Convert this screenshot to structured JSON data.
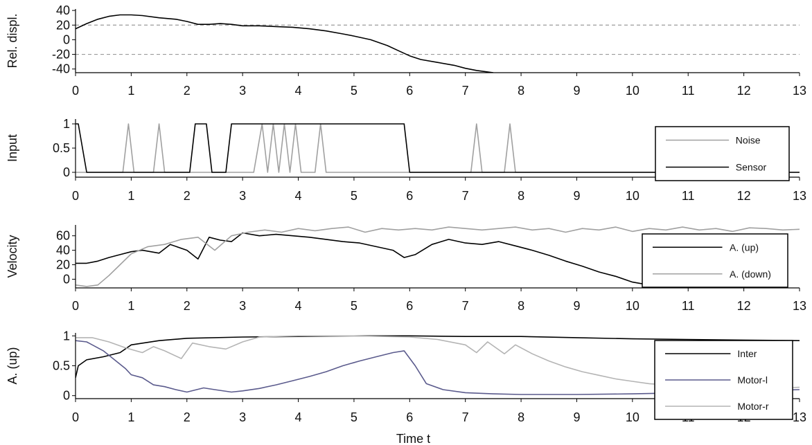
{
  "chart_data": [
    {
      "type": "line",
      "ylabel": "Rel. displ.",
      "xlim": [
        0,
        13
      ],
      "ylim": [
        -45,
        42
      ],
      "yticks": [
        40,
        20,
        0,
        -20,
        -40
      ],
      "xticks": [
        0,
        1,
        2,
        3,
        4,
        5,
        6,
        7,
        8,
        9,
        10,
        11,
        12,
        13
      ],
      "reference_lines": [
        20,
        -20
      ],
      "series": [
        {
          "color": "#000000",
          "x": [
            0,
            0.2,
            0.4,
            0.6,
            0.8,
            1.0,
            1.2,
            1.5,
            1.8,
            2.0,
            2.2,
            2.4,
            2.6,
            2.8,
            3.0,
            3.3,
            3.6,
            3.9,
            4.2,
            4.5,
            4.8,
            5.0,
            5.3,
            5.6,
            5.8,
            6.0,
            6.2,
            6.5,
            6.8,
            7.0,
            7.2,
            7.5
          ],
          "y": [
            15,
            22,
            28,
            32,
            34,
            34,
            33,
            30,
            28,
            25,
            21,
            21,
            22,
            21,
            19,
            19,
            18,
            17,
            15,
            12,
            8,
            5,
            0,
            -8,
            -15,
            -22,
            -27,
            -31,
            -35,
            -39,
            -42,
            -45
          ]
        }
      ]
    },
    {
      "type": "line",
      "ylabel": "Input",
      "xlim": [
        0,
        13
      ],
      "ylim": [
        -0.1,
        1.1
      ],
      "yticks": [
        1,
        0.5,
        0
      ],
      "xticks": [
        0,
        1,
        2,
        3,
        4,
        5,
        6,
        7,
        8,
        9,
        10,
        11,
        12,
        13
      ],
      "legend_position": "right",
      "series": [
        {
          "name": "Noise",
          "color": "#a0a0a0",
          "x": [
            0,
            0.85,
            0.95,
            1.05,
            1.4,
            1.5,
            1.6,
            3.2,
            3.35,
            3.45,
            3.55,
            3.65,
            3.75,
            3.85,
            3.95,
            4.05,
            4.3,
            4.4,
            4.5,
            7.1,
            7.2,
            7.3,
            7.7,
            7.8,
            7.9,
            13
          ],
          "y": [
            0,
            0,
            1,
            0,
            0,
            1,
            0,
            0,
            1,
            0,
            1,
            0,
            1,
            0,
            1,
            0,
            0,
            1,
            0,
            0,
            1,
            0,
            0,
            1,
            0,
            0
          ]
        },
        {
          "name": "Sensor",
          "color": "#000000",
          "x": [
            0,
            0.05,
            0.2,
            2.05,
            2.15,
            2.35,
            2.45,
            2.7,
            2.8,
            5.9,
            6.0,
            13
          ],
          "y": [
            1,
            1,
            0,
            0,
            1,
            1,
            0,
            0,
            1,
            1,
            0,
            0
          ]
        }
      ]
    },
    {
      "type": "line",
      "ylabel": "Velocity",
      "xlim": [
        0,
        13
      ],
      "ylim": [
        -12,
        75
      ],
      "yticks": [
        60,
        40,
        20,
        0
      ],
      "xticks": [
        0,
        1,
        2,
        3,
        4,
        5,
        6,
        7,
        8,
        9,
        10,
        11,
        12,
        13
      ],
      "legend_position": "right",
      "series": [
        {
          "name": "A. (up)",
          "color": "#000000",
          "x": [
            0,
            0.2,
            0.4,
            0.6,
            0.8,
            1.0,
            1.2,
            1.5,
            1.7,
            2.0,
            2.2,
            2.4,
            2.6,
            2.8,
            3.0,
            3.3,
            3.6,
            3.9,
            4.2,
            4.5,
            4.8,
            5.1,
            5.4,
            5.7,
            5.9,
            6.1,
            6.4,
            6.7,
            7.0,
            7.3,
            7.6,
            7.9,
            8.2,
            8.5,
            8.8,
            9.1,
            9.4,
            9.7,
            10.0,
            10.3,
            10.5
          ],
          "y": [
            22,
            22,
            25,
            30,
            34,
            38,
            40,
            36,
            48,
            40,
            28,
            58,
            54,
            52,
            64,
            60,
            62,
            60,
            58,
            55,
            52,
            50,
            45,
            40,
            30,
            34,
            48,
            55,
            50,
            48,
            52,
            46,
            40,
            33,
            25,
            18,
            10,
            4,
            -4,
            -8,
            -10
          ]
        },
        {
          "name": "A. (down)",
          "color": "#a0a0a0",
          "x": [
            0,
            0.2,
            0.4,
            0.6,
            0.8,
            1.0,
            1.3,
            1.6,
            1.9,
            2.2,
            2.5,
            2.8,
            3.1,
            3.4,
            3.7,
            4.0,
            4.3,
            4.6,
            4.9,
            5.2,
            5.5,
            5.8,
            6.1,
            6.4,
            6.7,
            7.0,
            7.3,
            7.6,
            7.9,
            8.2,
            8.5,
            8.8,
            9.1,
            9.4,
            9.7,
            10.0,
            10.3,
            10.6,
            10.9,
            11.2,
            11.5,
            11.8,
            12.1,
            12.4,
            12.7,
            13.0
          ],
          "y": [
            -8,
            -10,
            -8,
            5,
            20,
            35,
            45,
            48,
            55,
            58,
            40,
            60,
            65,
            68,
            65,
            70,
            67,
            70,
            72,
            65,
            70,
            68,
            70,
            68,
            72,
            70,
            68,
            70,
            72,
            68,
            70,
            65,
            70,
            68,
            72,
            66,
            70,
            68,
            72,
            68,
            70,
            66,
            71,
            70,
            68,
            69
          ]
        }
      ]
    },
    {
      "type": "line",
      "ylabel": "A. (up)",
      "xlabel": "Time t",
      "xlim": [
        0,
        13
      ],
      "ylim": [
        -0.05,
        1.05
      ],
      "yticks": [
        1,
        0.5,
        0
      ],
      "xticks": [
        0,
        1,
        2,
        3,
        4,
        5,
        6,
        7,
        8,
        9,
        10,
        11,
        12,
        13
      ],
      "legend_position": "right",
      "series": [
        {
          "name": "Inter",
          "color": "#000000",
          "x": [
            0,
            0.05,
            0.2,
            0.5,
            0.8,
            1.0,
            1.5,
            2.0,
            3.0,
            4.0,
            5.0,
            6.0,
            7.0,
            8.0,
            9.0,
            10.0,
            11.0,
            12.0,
            13.0
          ],
          "y": [
            0.3,
            0.5,
            0.6,
            0.65,
            0.72,
            0.85,
            0.92,
            0.96,
            0.98,
            0.99,
            1.0,
            1.0,
            0.99,
            0.99,
            0.97,
            0.95,
            0.94,
            0.93,
            0.92
          ]
        },
        {
          "name": "Motor-l",
          "color": "#5a5a8c",
          "x": [
            0,
            0.2,
            0.5,
            0.7,
            0.9,
            1.0,
            1.2,
            1.4,
            1.6,
            1.8,
            2.0,
            2.3,
            2.5,
            2.8,
            3.0,
            3.3,
            3.6,
            3.9,
            4.2,
            4.5,
            4.8,
            5.1,
            5.4,
            5.7,
            5.9,
            6.1,
            6.3,
            6.6,
            7.0,
            7.5,
            8.0,
            9.0,
            10.0,
            11.0,
            12.0,
            13.0
          ],
          "y": [
            0.92,
            0.9,
            0.75,
            0.6,
            0.45,
            0.35,
            0.3,
            0.18,
            0.15,
            0.1,
            0.06,
            0.13,
            0.1,
            0.06,
            0.08,
            0.12,
            0.18,
            0.25,
            0.32,
            0.4,
            0.5,
            0.58,
            0.65,
            0.72,
            0.75,
            0.5,
            0.2,
            0.1,
            0.05,
            0.03,
            0.02,
            0.02,
            0.03,
            0.05,
            0.07,
            0.1
          ]
        },
        {
          "name": "Motor-r",
          "color": "#b4b4b4",
          "x": [
            0,
            0.3,
            0.6,
            0.9,
            1.2,
            1.4,
            1.6,
            1.9,
            2.1,
            2.4,
            2.7,
            3.0,
            3.3,
            3.6,
            4.0,
            5.0,
            6.0,
            6.5,
            7.0,
            7.2,
            7.4,
            7.7,
            7.9,
            8.2,
            8.5,
            8.8,
            9.1,
            9.4,
            9.7,
            10.0,
            10.3,
            10.6,
            10.9,
            11.2,
            11.5,
            11.8,
            12.1,
            12.4,
            12.7,
            13.0
          ],
          "y": [
            0.97,
            0.97,
            0.9,
            0.8,
            0.72,
            0.82,
            0.75,
            0.62,
            0.88,
            0.82,
            0.78,
            0.9,
            0.98,
            0.99,
            1.0,
            1.0,
            0.98,
            0.94,
            0.85,
            0.72,
            0.9,
            0.7,
            0.85,
            0.7,
            0.58,
            0.48,
            0.4,
            0.34,
            0.28,
            0.24,
            0.2,
            0.18,
            0.17,
            0.16,
            0.15,
            0.13,
            0.12,
            0.12,
            0.13,
            0.14
          ]
        }
      ]
    }
  ]
}
